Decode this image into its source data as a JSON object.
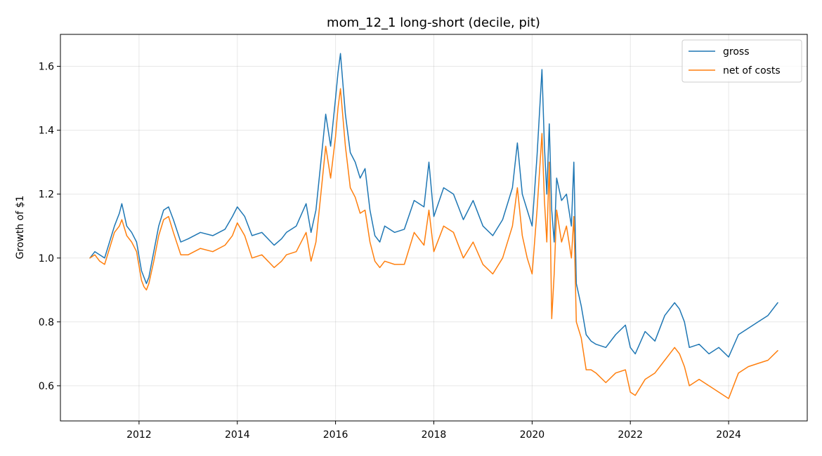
{
  "chart_data": {
    "type": "line",
    "title": "mom_12_1 long-short (decile, pit)",
    "xlabel": "",
    "ylabel": "Growth of $1",
    "xlim": [
      2010.4,
      2025.6
    ],
    "ylim": [
      0.49,
      1.7
    ],
    "x_ticks": [
      2012,
      2014,
      2016,
      2018,
      2020,
      2022,
      2024
    ],
    "x_tick_labels": [
      "2012",
      "2014",
      "2016",
      "2018",
      "2020",
      "2022",
      "2024"
    ],
    "y_ticks": [
      0.6,
      0.8,
      1.0,
      1.2,
      1.4,
      1.6
    ],
    "y_tick_labels": [
      "0.6",
      "0.8",
      "1.0",
      "1.2",
      "1.4",
      "1.6"
    ],
    "grid": true,
    "legend": "top-right",
    "series": [
      {
        "name": "gross",
        "color": "#1f77b4",
        "x": [
          2011.0,
          2011.1,
          2011.2,
          2011.3,
          2011.4,
          2011.5,
          2011.6,
          2011.65,
          2011.75,
          2011.85,
          2011.95,
          2012.05,
          2012.1,
          2012.15,
          2012.2,
          2012.3,
          2012.4,
          2012.5,
          2012.6,
          2012.7,
          2012.85,
          2013.0,
          2013.25,
          2013.5,
          2013.75,
          2013.9,
          2014.0,
          2014.15,
          2014.3,
          2014.5,
          2014.75,
          2014.9,
          2015.0,
          2015.2,
          2015.4,
          2015.5,
          2015.6,
          2015.7,
          2015.8,
          2015.9,
          2016.0,
          2016.05,
          2016.1,
          2016.2,
          2016.3,
          2016.4,
          2016.5,
          2016.6,
          2016.7,
          2016.8,
          2016.9,
          2017.0,
          2017.2,
          2017.4,
          2017.6,
          2017.8,
          2017.9,
          2018.0,
          2018.2,
          2018.4,
          2018.6,
          2018.8,
          2019.0,
          2019.2,
          2019.4,
          2019.6,
          2019.7,
          2019.8,
          2019.9,
          2020.0,
          2020.1,
          2020.2,
          2020.25,
          2020.3,
          2020.35,
          2020.4,
          2020.45,
          2020.5,
          2020.6,
          2020.7,
          2020.8,
          2020.85,
          2020.9,
          2021.0,
          2021.1,
          2021.2,
          2021.3,
          2021.5,
          2021.7,
          2021.9,
          2022.0,
          2022.1,
          2022.3,
          2022.5,
          2022.7,
          2022.9,
          2023.0,
          2023.1,
          2023.2,
          2023.4,
          2023.6,
          2023.8,
          2024.0,
          2024.2,
          2024.4,
          2024.6,
          2024.8,
          2025.0
        ],
        "values": [
          1.0,
          1.02,
          1.01,
          1.0,
          1.05,
          1.1,
          1.14,
          1.17,
          1.1,
          1.08,
          1.05,
          0.96,
          0.94,
          0.92,
          0.94,
          1.02,
          1.1,
          1.15,
          1.16,
          1.12,
          1.05,
          1.06,
          1.08,
          1.07,
          1.09,
          1.13,
          1.16,
          1.13,
          1.07,
          1.08,
          1.04,
          1.06,
          1.08,
          1.1,
          1.17,
          1.08,
          1.15,
          1.3,
          1.45,
          1.35,
          1.5,
          1.58,
          1.64,
          1.45,
          1.33,
          1.3,
          1.25,
          1.28,
          1.15,
          1.07,
          1.05,
          1.1,
          1.08,
          1.09,
          1.18,
          1.16,
          1.3,
          1.13,
          1.22,
          1.2,
          1.12,
          1.18,
          1.1,
          1.07,
          1.12,
          1.22,
          1.36,
          1.2,
          1.15,
          1.1,
          1.32,
          1.59,
          1.35,
          1.2,
          1.42,
          1.15,
          1.05,
          1.25,
          1.18,
          1.2,
          1.1,
          1.3,
          0.92,
          0.85,
          0.76,
          0.74,
          0.73,
          0.72,
          0.76,
          0.79,
          0.72,
          0.7,
          0.77,
          0.74,
          0.82,
          0.86,
          0.84,
          0.8,
          0.72,
          0.73,
          0.7,
          0.72,
          0.69,
          0.76,
          0.78,
          0.8,
          0.82,
          0.86
        ]
      },
      {
        "name": "net of costs",
        "color": "#ff7f0e",
        "x": [
          2011.0,
          2011.1,
          2011.2,
          2011.3,
          2011.4,
          2011.5,
          2011.6,
          2011.65,
          2011.75,
          2011.85,
          2011.95,
          2012.05,
          2012.1,
          2012.15,
          2012.2,
          2012.3,
          2012.4,
          2012.5,
          2012.6,
          2012.7,
          2012.85,
          2013.0,
          2013.25,
          2013.5,
          2013.75,
          2013.9,
          2014.0,
          2014.15,
          2014.3,
          2014.5,
          2014.75,
          2014.9,
          2015.0,
          2015.2,
          2015.4,
          2015.5,
          2015.6,
          2015.7,
          2015.8,
          2015.9,
          2016.0,
          2016.05,
          2016.1,
          2016.2,
          2016.3,
          2016.4,
          2016.5,
          2016.6,
          2016.7,
          2016.8,
          2016.9,
          2017.0,
          2017.2,
          2017.4,
          2017.6,
          2017.8,
          2017.9,
          2018.0,
          2018.2,
          2018.4,
          2018.6,
          2018.8,
          2019.0,
          2019.2,
          2019.4,
          2019.6,
          2019.7,
          2019.8,
          2019.9,
          2020.0,
          2020.1,
          2020.2,
          2020.25,
          2020.3,
          2020.35,
          2020.4,
          2020.45,
          2020.5,
          2020.6,
          2020.7,
          2020.8,
          2020.85,
          2020.9,
          2021.0,
          2021.1,
          2021.2,
          2021.3,
          2021.5,
          2021.7,
          2021.9,
          2022.0,
          2022.1,
          2022.3,
          2022.5,
          2022.7,
          2022.9,
          2023.0,
          2023.1,
          2023.2,
          2023.4,
          2023.6,
          2023.8,
          2024.0,
          2024.2,
          2024.4,
          2024.6,
          2024.8,
          2025.0
        ],
        "values": [
          1.0,
          1.01,
          0.99,
          0.98,
          1.03,
          1.08,
          1.1,
          1.12,
          1.07,
          1.05,
          1.02,
          0.93,
          0.91,
          0.9,
          0.92,
          0.99,
          1.07,
          1.12,
          1.13,
          1.08,
          1.01,
          1.01,
          1.03,
          1.02,
          1.04,
          1.07,
          1.11,
          1.07,
          1.0,
          1.01,
          0.97,
          0.99,
          1.01,
          1.02,
          1.08,
          0.99,
          1.05,
          1.2,
          1.35,
          1.25,
          1.38,
          1.47,
          1.53,
          1.35,
          1.22,
          1.19,
          1.14,
          1.15,
          1.05,
          0.99,
          0.97,
          0.99,
          0.98,
          0.98,
          1.08,
          1.04,
          1.15,
          1.02,
          1.1,
          1.08,
          1.0,
          1.05,
          0.98,
          0.95,
          1.0,
          1.1,
          1.22,
          1.07,
          1.0,
          0.95,
          1.15,
          1.39,
          1.18,
          1.05,
          1.3,
          0.81,
          0.95,
          1.15,
          1.05,
          1.1,
          1.0,
          1.13,
          0.8,
          0.75,
          0.65,
          0.65,
          0.64,
          0.61,
          0.64,
          0.65,
          0.58,
          0.57,
          0.62,
          0.64,
          0.68,
          0.72,
          0.7,
          0.66,
          0.6,
          0.62,
          0.6,
          0.58,
          0.56,
          0.64,
          0.66,
          0.67,
          0.68,
          0.71
        ]
      }
    ]
  }
}
